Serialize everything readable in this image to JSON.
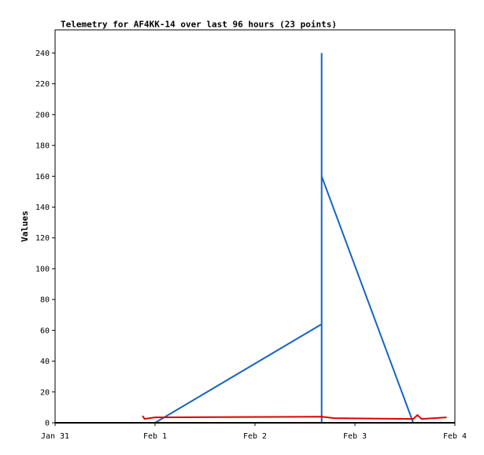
{
  "chart_data": {
    "type": "line",
    "title": "Telemetry for AF4KK-14 over last 96 hours (23 points)",
    "xlabel": "",
    "ylabel": "Values",
    "x_tick_labels": [
      "Jan 31",
      "Feb 1",
      "Feb 2",
      "Feb 3",
      "Feb 4"
    ],
    "xlim": [
      "2024-01-31T00:00",
      "2024-02-04T00:00"
    ],
    "ylim": [
      0,
      255
    ],
    "y_ticks": [
      0,
      20,
      40,
      60,
      80,
      100,
      120,
      140,
      160,
      180,
      200,
      220,
      240
    ],
    "grid": false,
    "legend": "none",
    "series": [
      {
        "color": "#1565c0",
        "points": [
          [
            "2024-02-01T00:00",
            0
          ],
          [
            "2024-02-02T16:00",
            64
          ],
          [
            "2024-02-02T16:00",
            0
          ],
          [
            "2024-02-02T16:00",
            240
          ],
          [
            "2024-02-02T16:00",
            80
          ],
          [
            "2024-02-02T16:00",
            160
          ],
          [
            "2024-02-03T14:00",
            0
          ]
        ]
      },
      {
        "color": "#e00000",
        "points": [
          [
            "2024-01-31T21:00",
            4.5
          ],
          [
            "2024-01-31T21:30",
            2.5
          ],
          [
            "2024-02-01T00:00",
            3.5
          ],
          [
            "2024-02-02T16:00",
            4
          ],
          [
            "2024-02-02T19:00",
            3
          ],
          [
            "2024-02-03T14:00",
            2.5
          ],
          [
            "2024-02-03T15:00",
            5
          ],
          [
            "2024-02-03T16:00",
            2.5
          ],
          [
            "2024-02-03T22:00",
            3.5
          ]
        ]
      },
      {
        "color": "#000000",
        "points": [
          [
            "2024-01-31T00:00",
            0
          ],
          [
            "2024-02-04T00:00",
            0
          ]
        ]
      }
    ]
  }
}
